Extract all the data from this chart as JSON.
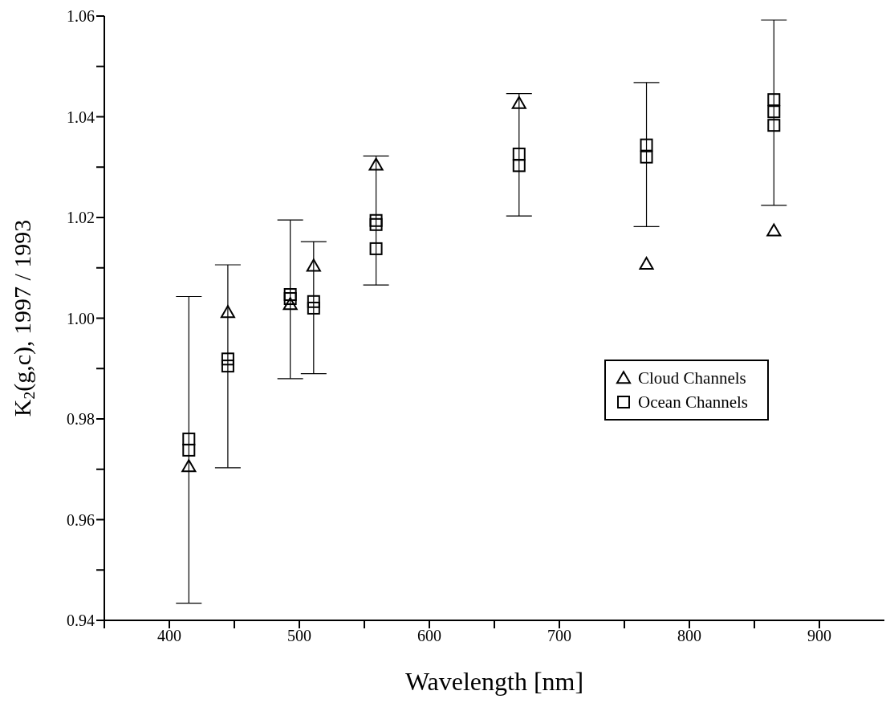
{
  "chart_data": {
    "type": "scatter",
    "xlabel": "Wavelength [nm]",
    "ylabel": "K$_{2}$(g,c), 1997 / 1993",
    "xlim": [
      350,
      950
    ],
    "xticks": [
      {
        "value": 350,
        "label": null
      },
      400,
      {
        "value": 450,
        "label": null
      },
      500,
      {
        "value": 550,
        "label": null
      },
      600,
      {
        "value": 650,
        "label": null
      },
      700,
      {
        "value": 750,
        "label": null
      },
      800,
      {
        "value": 850,
        "label": null
      },
      900
    ],
    "ylim": [
      0.94,
      1.06
    ],
    "yticks": [
      0.94,
      {
        "value": 0.95,
        "label": null
      },
      0.96,
      {
        "value": 0.97,
        "label": null
      },
      0.98,
      {
        "value": 0.99,
        "label": null
      },
      {
        "value": 1,
        "label": "1.00"
      },
      {
        "value": 1.01,
        "label": null
      },
      1.02,
      {
        "value": 1.03,
        "label": null
      },
      1.04,
      {
        "value": 1.05,
        "label": null
      },
      1.06
    ],
    "grid": false,
    "legend": "right",
    "series": [
      {
        "name": "Cloud Channels",
        "color": "#000000",
        "marker": "triangle",
        "x": [
          415,
          445,
          493,
          511,
          559,
          669,
          767,
          865
        ],
        "values": [
          0.9706,
          1.0012,
          1.0028,
          1.0104,
          1.0305,
          1.0427,
          1.0108,
          1.0174
        ]
      },
      {
        "name": "Ocean Channels",
        "color": "#000000",
        "marker": "square",
        "x": [
          415,
          415,
          445,
          445,
          493,
          493,
          511,
          511,
          559,
          559,
          559,
          669,
          669,
          767,
          767,
          865,
          865,
          865
        ],
        "values": [
          0.976,
          0.9738,
          0.9919,
          0.9905,
          1.0047,
          1.0039,
          1.0033,
          1.002,
          1.0194,
          1.0186,
          1.0138,
          1.0326,
          1.0303,
          1.0344,
          1.032,
          1.0434,
          1.041,
          1.0383
        ],
        "errors": [
          null,
          [
            0.9434,
            1.0043
          ],
          null,
          [
            0.9703,
            1.0106
          ],
          null,
          [
            0.988,
            1.0195
          ],
          null,
          [
            0.989,
            1.0152
          ],
          [
            1.0066,
            1.0322
          ],
          null,
          null,
          [
            1.0203,
            1.0446
          ],
          null,
          [
            1.0182,
            1.0468
          ],
          null,
          null,
          [
            1.0224,
            1.0592
          ],
          null
        ]
      }
    ]
  }
}
